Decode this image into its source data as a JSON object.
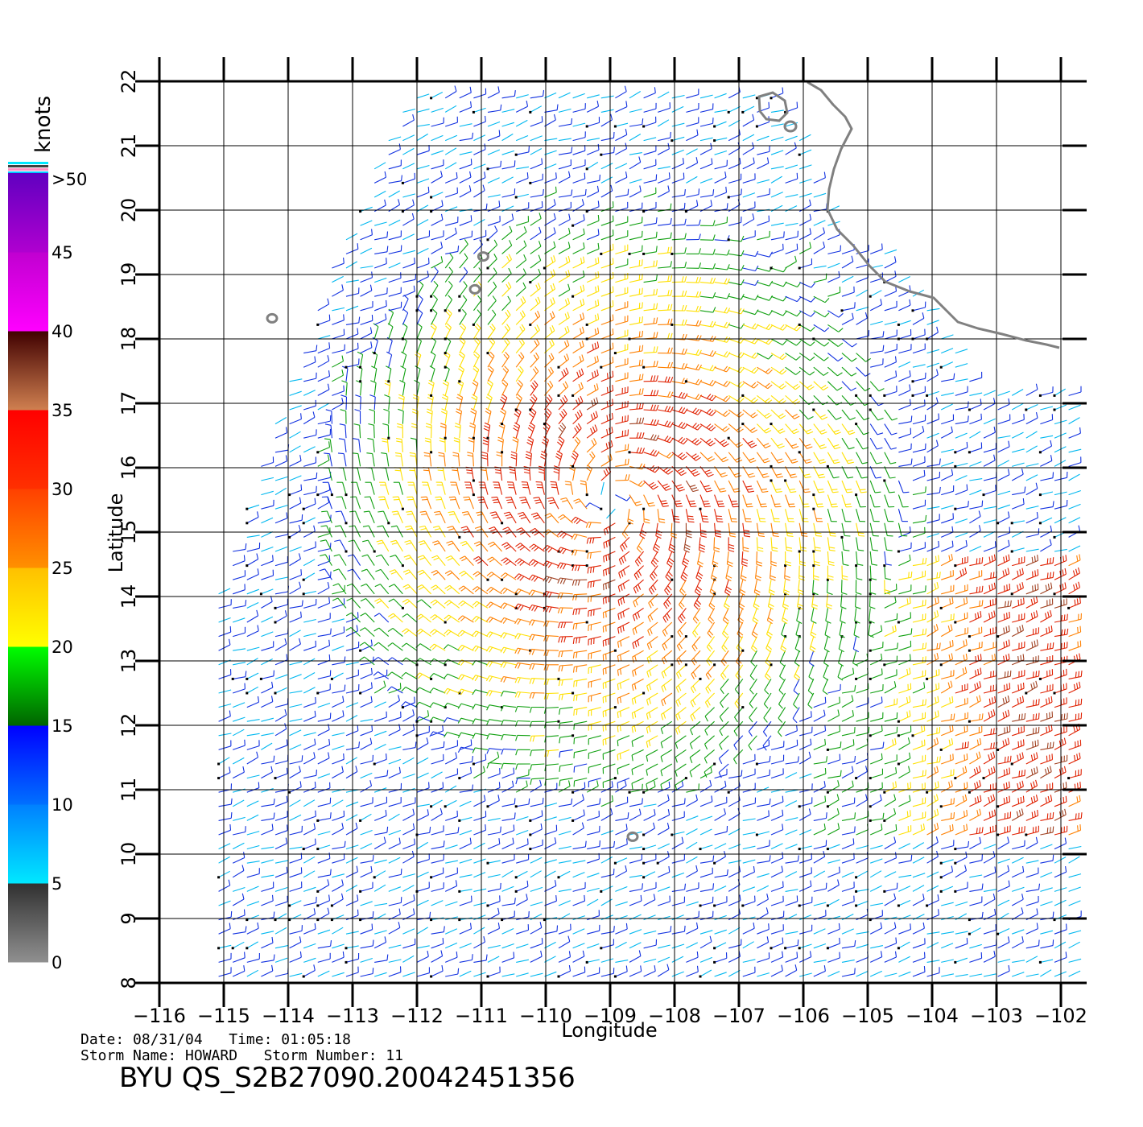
{
  "map": {
    "x_label": "Longitude",
    "y_label": "Latitude",
    "lon_range": [
      -116,
      -101.6
    ],
    "lat_range": [
      8,
      22
    ],
    "lon_ticks": [
      -116,
      -115,
      -114,
      -113,
      -112,
      -111,
      -110,
      -109,
      -108,
      -107,
      -106,
      -105,
      -104,
      -103,
      -102
    ],
    "lon_tick_labels": [
      "−116",
      "−115",
      "−114",
      "−113",
      "−112",
      "−111",
      "−110",
      "−109",
      "−108",
      "−107",
      "−106",
      "−105",
      "−104",
      "−103",
      "−102"
    ],
    "lat_ticks": [
      8,
      9,
      10,
      11,
      12,
      13,
      14,
      15,
      16,
      17,
      18,
      19,
      20,
      21,
      22
    ],
    "lat_tick_labels": [
      "8",
      "9",
      "10",
      "11",
      "12",
      "13",
      "14",
      "15",
      "16",
      "17",
      "18",
      "19",
      "20",
      "21",
      "22"
    ],
    "grid": true,
    "storm_center": {
      "lon": -109.0,
      "lat": 15.5
    },
    "islands": [
      {
        "lon": -114.25,
        "lat": 18.32
      },
      {
        "lon": -110.97,
        "lat": 19.28
      },
      {
        "lon": -111.1,
        "lat": 18.77
      },
      {
        "lon": -108.65,
        "lat": 10.27
      }
    ]
  },
  "colorbar": {
    "title": "knots",
    "tick_labels": [
      ">50",
      "45",
      "40",
      "35",
      "30",
      "25",
      "20",
      "15",
      "10",
      "5",
      "0"
    ],
    "bands": [
      {
        "from": 0,
        "to": 5,
        "colors": [
          "#909090",
          "#303030"
        ]
      },
      {
        "from": 5,
        "to": 10,
        "colors": [
          "#00e8ff",
          "#0080ff"
        ]
      },
      {
        "from": 10,
        "to": 15,
        "colors": [
          "#0070ff",
          "#0000ff"
        ]
      },
      {
        "from": 15,
        "to": 20,
        "colors": [
          "#006400",
          "#00ff00"
        ]
      },
      {
        "from": 20,
        "to": 25,
        "colors": [
          "#ffff00",
          "#ffc000"
        ]
      },
      {
        "from": 25,
        "to": 30,
        "colors": [
          "#ff9000",
          "#ff4000"
        ]
      },
      {
        "from": 30,
        "to": 35,
        "colors": [
          "#ff3000",
          "#ff0000"
        ]
      },
      {
        "from": 35,
        "to": 40,
        "colors": [
          "#d08050",
          "#400000"
        ]
      },
      {
        "from": 40,
        "to": 45,
        "colors": [
          "#ff00ff",
          "#c000d0"
        ]
      },
      {
        "from": 45,
        "to": 50,
        "colors": [
          "#b000d0",
          "#6000c0"
        ]
      }
    ]
  },
  "info": {
    "line1": "Date: 08/31/04   Time: 01:05:18",
    "line2": "Storm Name: HOWARD   Storm Number: 11",
    "product": "BYU QS_S2B27090.20042451356"
  }
}
